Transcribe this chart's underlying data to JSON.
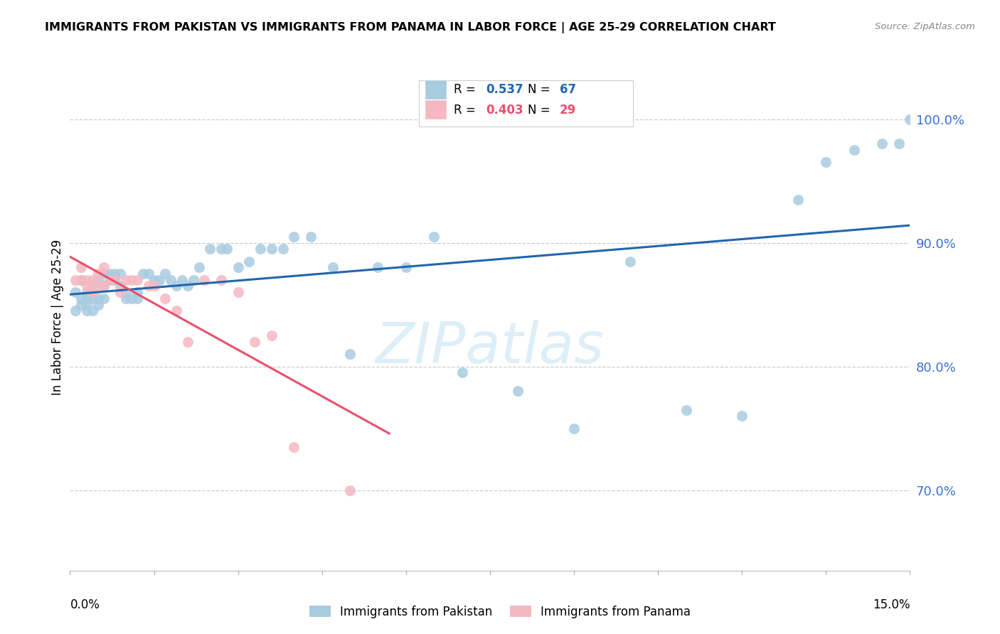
{
  "title": "IMMIGRANTS FROM PAKISTAN VS IMMIGRANTS FROM PANAMA IN LABOR FORCE | AGE 25-29 CORRELATION CHART",
  "source": "Source: ZipAtlas.com",
  "ylabel": "In Labor Force | Age 25-29",
  "y_ticks": [
    0.7,
    0.8,
    0.9,
    1.0
  ],
  "y_tick_labels": [
    "70.0%",
    "80.0%",
    "90.0%",
    "100.0%"
  ],
  "x_range": [
    0.0,
    0.15
  ],
  "y_range": [
    0.635,
    1.045
  ],
  "pakistan_color": "#a8cce0",
  "panama_color": "#f5b8c0",
  "pakistan_r": 0.537,
  "pakistan_n": 67,
  "panama_r": 0.403,
  "panama_n": 29,
  "pakistan_line_color": "#2166ac",
  "panama_line_color": "#e8506a",
  "watermark_color": "#ddeef8",
  "pakistan_scatter_x": [
    0.001,
    0.001,
    0.002,
    0.002,
    0.002,
    0.003,
    0.003,
    0.003,
    0.003,
    0.004,
    0.004,
    0.004,
    0.005,
    0.005,
    0.005,
    0.006,
    0.006,
    0.006,
    0.007,
    0.007,
    0.008,
    0.008,
    0.009,
    0.009,
    0.01,
    0.01,
    0.011,
    0.012,
    0.012,
    0.013,
    0.014,
    0.015,
    0.016,
    0.017,
    0.018,
    0.019,
    0.02,
    0.021,
    0.022,
    0.023,
    0.025,
    0.027,
    0.028,
    0.03,
    0.032,
    0.034,
    0.036,
    0.038,
    0.04,
    0.043,
    0.047,
    0.05,
    0.055,
    0.06,
    0.065,
    0.07,
    0.08,
    0.09,
    0.1,
    0.11,
    0.12,
    0.13,
    0.135,
    0.14,
    0.145,
    0.148,
    0.15
  ],
  "pakistan_scatter_y": [
    0.86,
    0.845,
    0.855,
    0.87,
    0.85,
    0.855,
    0.845,
    0.86,
    0.85,
    0.855,
    0.845,
    0.865,
    0.85,
    0.87,
    0.855,
    0.855,
    0.865,
    0.875,
    0.87,
    0.875,
    0.87,
    0.875,
    0.875,
    0.865,
    0.86,
    0.855,
    0.855,
    0.86,
    0.855,
    0.875,
    0.875,
    0.87,
    0.87,
    0.875,
    0.87,
    0.865,
    0.87,
    0.865,
    0.87,
    0.88,
    0.895,
    0.895,
    0.895,
    0.88,
    0.885,
    0.895,
    0.895,
    0.895,
    0.905,
    0.905,
    0.88,
    0.81,
    0.88,
    0.88,
    0.905,
    0.795,
    0.78,
    0.75,
    0.885,
    0.765,
    0.76,
    0.935,
    0.965,
    0.975,
    0.98,
    0.98,
    1.0
  ],
  "panama_scatter_x": [
    0.001,
    0.002,
    0.002,
    0.003,
    0.003,
    0.004,
    0.004,
    0.005,
    0.005,
    0.006,
    0.006,
    0.007,
    0.008,
    0.009,
    0.01,
    0.011,
    0.012,
    0.014,
    0.015,
    0.017,
    0.019,
    0.021,
    0.024,
    0.027,
    0.03,
    0.033,
    0.036,
    0.04,
    0.05
  ],
  "panama_scatter_y": [
    0.87,
    0.88,
    0.87,
    0.87,
    0.865,
    0.87,
    0.86,
    0.875,
    0.865,
    0.865,
    0.88,
    0.87,
    0.87,
    0.86,
    0.87,
    0.87,
    0.87,
    0.865,
    0.865,
    0.855,
    0.845,
    0.82,
    0.87,
    0.87,
    0.86,
    0.82,
    0.825,
    0.735,
    0.7
  ]
}
